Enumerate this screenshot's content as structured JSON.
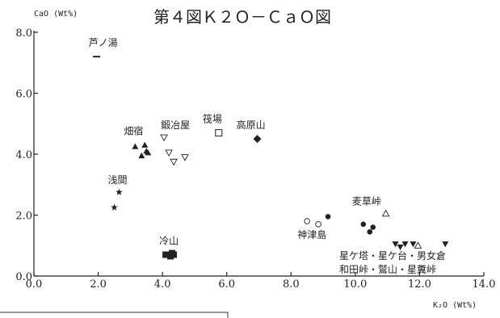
{
  "chart_data": {
    "type": "scatter",
    "title": "第４図Ｋ２Ｏ－ＣａＯ図",
    "xlabel": "K₂O (Wt%)",
    "ylabel": "CaO (Wt%)",
    "xlim": [
      0,
      14
    ],
    "ylim": [
      0,
      8
    ],
    "x_ticks": [
      "0.0",
      "2.0",
      "4.0",
      "6.0",
      "8.0",
      "10.0",
      "12.0",
      "14.0"
    ],
    "y_ticks": [
      "0.0",
      "2.0",
      "4.0",
      "6.0",
      "8.0"
    ],
    "grid": false,
    "groups": [
      {
        "label": "芦ノ湯",
        "marker": "dash",
        "label_pos": [
          1.7,
          7.55
        ],
        "points": [
          [
            1.95,
            7.2
          ]
        ]
      },
      {
        "label": "畑宿",
        "marker": "triangle-up-filled",
        "label_pos": [
          2.8,
          4.65
        ],
        "points": [
          [
            3.15,
            4.25
          ],
          [
            3.45,
            4.3
          ],
          [
            3.5,
            4.1
          ],
          [
            3.35,
            3.95
          ],
          [
            3.55,
            4.05
          ]
        ]
      },
      {
        "label": "鍛冶屋",
        "marker": "triangle-down-open",
        "label_pos": [
          3.95,
          4.85
        ],
        "points": [
          [
            4.05,
            4.55
          ],
          [
            4.2,
            4.05
          ],
          [
            4.35,
            3.75
          ],
          [
            4.7,
            3.9
          ]
        ]
      },
      {
        "label": "筏場",
        "marker": "square-open",
        "label_pos": [
          5.25,
          5.05
        ],
        "points": [
          [
            5.75,
            4.7
          ]
        ]
      },
      {
        "label": "高原山",
        "marker": "diamond-filled",
        "label_pos": [
          6.3,
          4.85
        ],
        "points": [
          [
            6.95,
            4.5
          ]
        ]
      },
      {
        "label": "浅間",
        "marker": "star-filled",
        "label_pos": [
          2.3,
          3.05
        ],
        "points": [
          [
            2.65,
            2.75
          ],
          [
            2.5,
            2.25
          ]
        ]
      },
      {
        "label": "冷山",
        "marker": "square-filled",
        "label_pos": [
          3.9,
          1.05
        ],
        "points": [
          [
            4.1,
            0.7
          ],
          [
            4.3,
            0.75
          ],
          [
            4.25,
            0.65
          ],
          [
            4.35,
            0.7
          ]
        ]
      },
      {
        "label": "神津島",
        "marker": "circle-open",
        "label_pos": [
          8.2,
          1.25
        ],
        "points": [
          [
            8.5,
            1.8
          ],
          [
            8.85,
            1.7
          ]
        ]
      },
      {
        "label": "麦草峠",
        "marker": "circle-filled",
        "label_pos": [
          9.9,
          2.35
        ],
        "points": [
          [
            9.15,
            1.95
          ],
          [
            10.25,
            1.7
          ],
          [
            10.45,
            1.45
          ],
          [
            10.55,
            1.6
          ]
        ]
      },
      {
        "label": "",
        "marker": "triangle-up-open",
        "label_pos": null,
        "points": [
          [
            10.95,
            2.05
          ],
          [
            11.95,
            1.0
          ]
        ]
      },
      {
        "label": "星ケ塔・星ケ台・男女倉",
        "marker": "triangle-down-filled",
        "label_pos": [
          9.5,
          0.55
        ],
        "points": [
          [
            11.25,
            1.05
          ],
          [
            11.4,
            0.95
          ],
          [
            11.55,
            1.05
          ],
          [
            11.8,
            1.05
          ],
          [
            12.8,
            1.05
          ]
        ]
      },
      {
        "label": "和田峠・鷲山・星糞峠",
        "marker": "",
        "label_pos": [
          9.5,
          0.1
        ],
        "points": []
      }
    ]
  }
}
